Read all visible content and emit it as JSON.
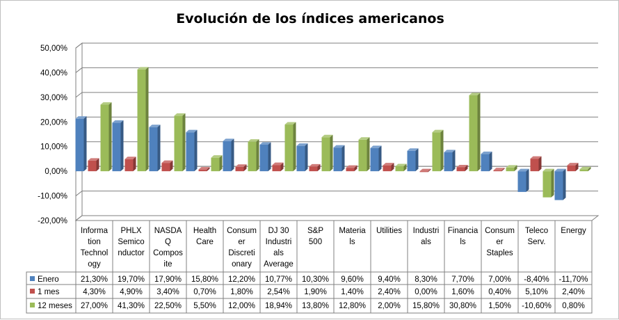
{
  "chart_data": {
    "type": "bar",
    "title": "Evolución de los índices americanos",
    "categories": [
      [
        "Informa",
        "tion",
        "Technol",
        "ogy"
      ],
      [
        "PHLX",
        "Semico",
        "nductor"
      ],
      [
        "NASDA",
        "Q",
        "Compos",
        "ite"
      ],
      [
        "Health",
        "Care"
      ],
      [
        "Consum",
        "er",
        "Discreti",
        "onary"
      ],
      [
        "DJ 30",
        "Industri",
        "als",
        "Average"
      ],
      [
        "S&P",
        "500"
      ],
      [
        "Materia",
        "ls"
      ],
      [
        "Utilities"
      ],
      [
        "Industri",
        "als"
      ],
      [
        "Financia",
        "ls"
      ],
      [
        "Consum",
        "er",
        "Staples"
      ],
      [
        "Teleco",
        "Serv."
      ],
      [
        "Energy"
      ]
    ],
    "series": [
      {
        "name": "Enero",
        "color": "#4f81bd",
        "values": [
          21.3,
          19.7,
          17.9,
          15.8,
          12.2,
          10.77,
          10.3,
          9.6,
          9.4,
          8.3,
          7.7,
          7.0,
          -8.4,
          -11.7
        ],
        "labels": [
          "21,30%",
          "19,70%",
          "17,90%",
          "15,80%",
          "12,20%",
          "10,77%",
          "10,30%",
          "9,60%",
          "9,40%",
          "8,30%",
          "7,70%",
          "7,00%",
          "-8,40%",
          "-11,70%"
        ]
      },
      {
        "name": "1 mes",
        "color": "#c0504d",
        "values": [
          4.3,
          4.9,
          3.4,
          0.7,
          1.8,
          2.54,
          1.9,
          1.4,
          2.4,
          0.0,
          1.6,
          0.4,
          5.1,
          2.4
        ],
        "labels": [
          "4,30%",
          "4,90%",
          "3,40%",
          "0,70%",
          "1,80%",
          "2,54%",
          "1,90%",
          "1,40%",
          "2,40%",
          "0,00%",
          "1,60%",
          "0,40%",
          "5,10%",
          "2,40%"
        ]
      },
      {
        "name": "12 meses",
        "color": "#9bbb59",
        "values": [
          27.0,
          41.3,
          22.5,
          5.5,
          12.0,
          18.94,
          13.8,
          12.8,
          2.0,
          15.8,
          30.8,
          1.5,
          -10.6,
          0.8
        ],
        "labels": [
          "27,00%",
          "41,30%",
          "22,50%",
          "5,50%",
          "12,00%",
          "18,94%",
          "13,80%",
          "12,80%",
          "2,00%",
          "15,80%",
          "30,80%",
          "1,50%",
          "-10,60%",
          "0,80%"
        ]
      }
    ],
    "ylim": [
      -20,
      50
    ],
    "yticks": [
      50,
      40,
      30,
      20,
      10,
      0,
      -10,
      -20
    ],
    "ytick_labels": [
      "50,00%",
      "40,00%",
      "30,00%",
      "20,00%",
      "10,00%",
      "0,00%",
      "-10,00%",
      "-20,00%"
    ],
    "grid": true,
    "legend": "data-table-left"
  }
}
